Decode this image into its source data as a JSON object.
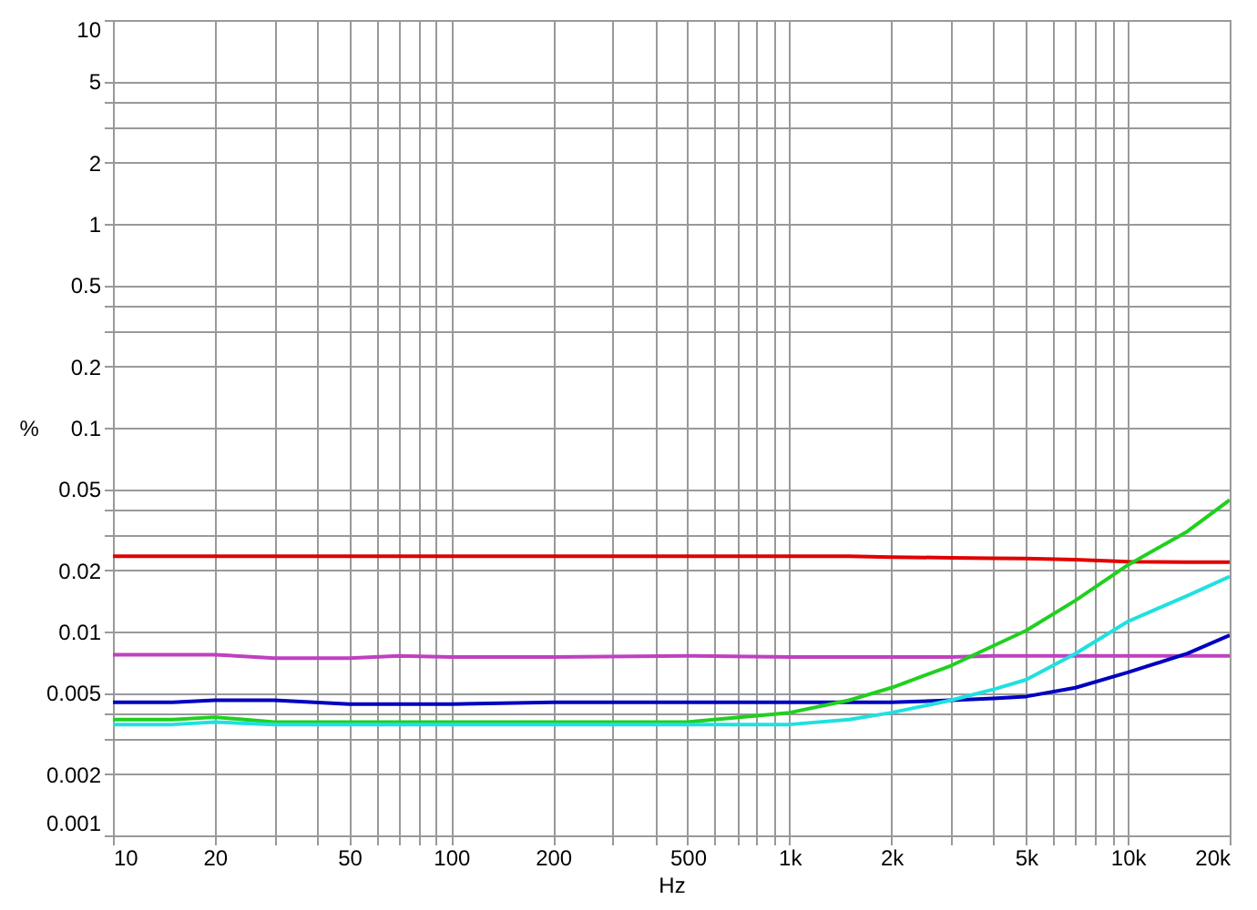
{
  "chart_data": {
    "type": "line",
    "xlabel": "Hz",
    "ylabel": "%",
    "log": "xy",
    "grid": true,
    "line_style": "solid",
    "marker": "none",
    "xlim": [
      10,
      20000
    ],
    "ylim": [
      0.001,
      10
    ],
    "xticks": [
      10,
      20,
      {
        "value": 30,
        "label": null
      },
      {
        "value": 40,
        "label": null
      },
      50,
      {
        "value": 60,
        "label": null
      },
      {
        "value": 70,
        "label": null
      },
      {
        "value": 80,
        "label": null
      },
      {
        "value": 90,
        "label": null
      },
      100,
      200,
      {
        "value": 300,
        "label": null
      },
      {
        "value": 400,
        "label": null
      },
      500,
      {
        "value": 600,
        "label": null
      },
      {
        "value": 700,
        "label": null
      },
      {
        "value": 800,
        "label": null
      },
      {
        "value": 900,
        "label": null
      },
      {
        "value": 1000,
        "label": "1k"
      },
      {
        "value": 2000,
        "label": "2k"
      },
      {
        "value": 3000,
        "label": null
      },
      {
        "value": 4000,
        "label": null
      },
      {
        "value": 5000,
        "label": "5k"
      },
      {
        "value": 6000,
        "label": null
      },
      {
        "value": 7000,
        "label": null
      },
      {
        "value": 8000,
        "label": null
      },
      {
        "value": 9000,
        "label": null
      },
      {
        "value": 10000,
        "label": "10k"
      },
      {
        "value": 20000,
        "label": "20k"
      }
    ],
    "yticks": [
      0.001,
      0.002,
      {
        "value": 0.003,
        "label": null
      },
      {
        "value": 0.004,
        "label": null
      },
      0.005,
      0.01,
      0.02,
      {
        "value": 0.03,
        "label": null
      },
      {
        "value": 0.04,
        "label": null
      },
      0.05,
      0.1,
      0.2,
      {
        "value": 0.3,
        "label": null
      },
      {
        "value": 0.4,
        "label": null
      },
      0.5,
      1,
      2,
      {
        "value": 3,
        "label": null
      },
      {
        "value": 4,
        "label": null
      },
      5,
      10
    ],
    "x": [
      10,
      15,
      20,
      30,
      50,
      70,
      100,
      200,
      500,
      1000,
      1500,
      2000,
      3000,
      4000,
      5000,
      7000,
      10000,
      15000,
      20000
    ],
    "series": [
      {
        "color": "#e00000",
        "values": [
          0.0234,
          0.0234,
          0.0234,
          0.0234,
          0.0234,
          0.0234,
          0.0234,
          0.0234,
          0.0234,
          0.0234,
          0.0234,
          0.0232,
          0.023,
          0.0229,
          0.0228,
          0.0225,
          0.022,
          0.0219,
          0.0219
        ]
      },
      {
        "color": "#c040c0",
        "values": [
          0.0077,
          0.0077,
          0.0077,
          0.0074,
          0.0074,
          0.0076,
          0.0075,
          0.0075,
          0.0076,
          0.0075,
          0.0075,
          0.0075,
          0.0075,
          0.0076,
          0.0076,
          0.0076,
          0.0076,
          0.0076,
          0.0076
        ]
      },
      {
        "color": "#0000c0",
        "values": [
          0.0045,
          0.0045,
          0.0046,
          0.0046,
          0.0044,
          0.0044,
          0.0044,
          0.0045,
          0.0045,
          0.0045,
          0.0045,
          0.0045,
          0.0046,
          0.0047,
          0.0048,
          0.0053,
          0.0063,
          0.0078,
          0.0096
        ]
      },
      {
        "color": "#20d020",
        "values": [
          0.0037,
          0.0037,
          0.0038,
          0.0036,
          0.0036,
          0.0036,
          0.0036,
          0.0036,
          0.0036,
          0.004,
          0.0046,
          0.0053,
          0.0068,
          0.0085,
          0.0101,
          0.0142,
          0.0212,
          0.031,
          0.0442
        ]
      },
      {
        "color": "#20e0e0",
        "values": [
          0.0035,
          0.0035,
          0.0036,
          0.0035,
          0.0035,
          0.0035,
          0.0035,
          0.0035,
          0.0035,
          0.0035,
          0.0037,
          0.004,
          0.0046,
          0.0052,
          0.0058,
          0.0078,
          0.0112,
          0.015,
          0.0186
        ]
      }
    ]
  }
}
